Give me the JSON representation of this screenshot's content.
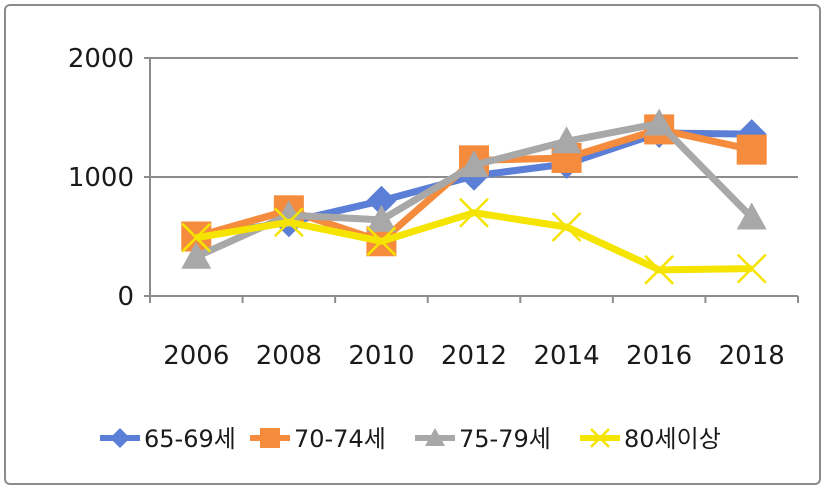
{
  "chart_data": {
    "type": "line",
    "title": "",
    "xlabel": "",
    "ylabel": "",
    "categories": [
      "2006",
      "2008",
      "2010",
      "2012",
      "2014",
      "2016",
      "2018"
    ],
    "y_ticks": [
      "0",
      "1000",
      "2000"
    ],
    "ylim": [
      0,
      2000
    ],
    "grid": true,
    "legend_position": "bottom",
    "series": [
      {
        "name": "65-69세",
        "color": "#5b7fd6",
        "marker": "diamond",
        "values": [
          500,
          620,
          800,
          1010,
          1110,
          1370,
          1360
        ]
      },
      {
        "name": "70-74세",
        "color": "#f58b3c",
        "marker": "square",
        "values": [
          500,
          720,
          460,
          1140,
          1160,
          1400,
          1230
        ]
      },
      {
        "name": "75-79세",
        "color": "#a8a8a8",
        "marker": "triangle",
        "values": [
          330,
          680,
          640,
          1100,
          1300,
          1450,
          660
        ]
      },
      {
        "name": "80세이상",
        "color": "#f5e400",
        "marker": "x",
        "values": [
          490,
          620,
          460,
          700,
          580,
          220,
          230
        ]
      }
    ]
  }
}
